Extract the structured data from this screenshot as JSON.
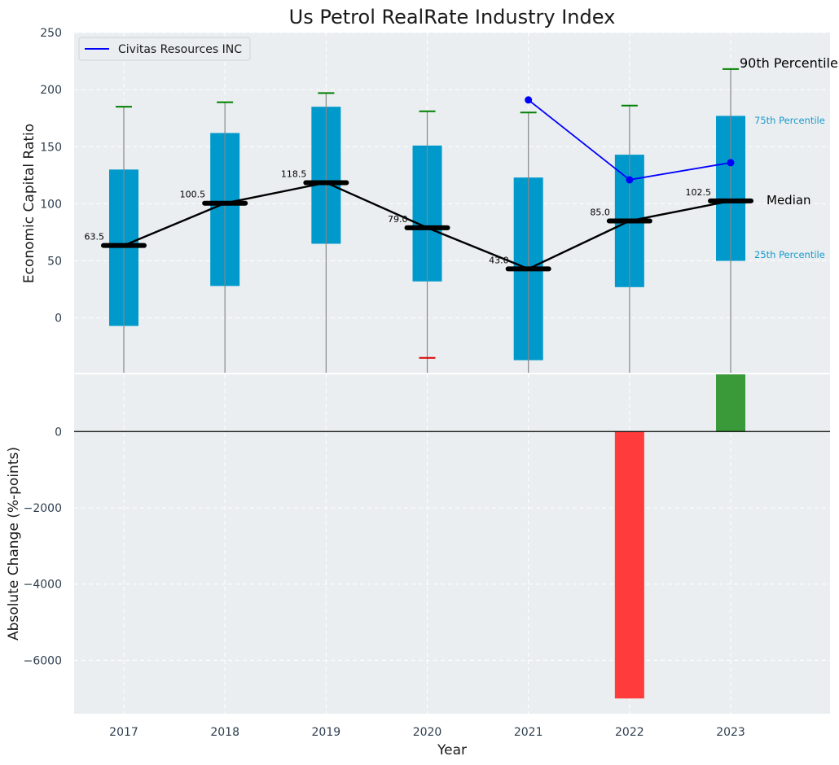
{
  "chart_data": [
    {
      "type": "box",
      "title": "Us Petrol RealRate Industry Index",
      "ylabel": "Economic Capital Ratio",
      "xlabel": "",
      "ylim": [
        -48,
        250
      ],
      "yticks": [
        0,
        50,
        100,
        150,
        200,
        250
      ],
      "categories": [
        "2017",
        "2018",
        "2019",
        "2020",
        "2021",
        "2022",
        "2023"
      ],
      "boxes": [
        {
          "year": "2017",
          "p10": null,
          "p25": -7,
          "median": 63.5,
          "p75": 130,
          "p90": 185
        },
        {
          "year": "2018",
          "p10": null,
          "p25": 28,
          "median": 100.5,
          "p75": 162,
          "p90": 189
        },
        {
          "year": "2019",
          "p10": null,
          "p25": 65,
          "median": 118.5,
          "p75": 185,
          "p90": 197
        },
        {
          "year": "2020",
          "p10": -35,
          "p25": 32,
          "median": 79.0,
          "p75": 151,
          "p90": 181
        },
        {
          "year": "2021",
          "p10": null,
          "p25": -37,
          "median": 43.0,
          "p75": 123,
          "p90": 180
        },
        {
          "year": "2022",
          "p10": null,
          "p25": 27,
          "median": 85.0,
          "p75": 143,
          "p90": 186
        },
        {
          "year": "2023",
          "p10": null,
          "p25": 50,
          "median": 102.5,
          "p75": 177,
          "p90": 218
        }
      ],
      "median_labels": [
        "63.5",
        "100.5",
        "118.5",
        "79.0",
        "43.0",
        "85.0",
        "102.5"
      ],
      "company_series": {
        "name": "Civitas Resources INC",
        "x": [
          "2021",
          "2022",
          "2023"
        ],
        "values": [
          191,
          121,
          136
        ]
      },
      "legend": {
        "position": "top-left",
        "entries": [
          "Civitas Resources INC"
        ]
      },
      "annotations": {
        "p90": "90th Percentile",
        "p75": "75th Percentile",
        "median": "Median",
        "p25": "25th Percentile"
      },
      "grid": true
    },
    {
      "type": "bar",
      "title": "",
      "xlabel": "Year",
      "ylabel": "Absolute Change (%-points)",
      "ylim": [
        -7400,
        1500
      ],
      "yticks": [
        0,
        -2000,
        -4000,
        -6000
      ],
      "ytick_labels": [
        "0",
        "−2000",
        "−4000",
        "−6000"
      ],
      "categories": [
        "2017",
        "2018",
        "2019",
        "2020",
        "2021",
        "2022",
        "2023"
      ],
      "values": [
        null,
        null,
        null,
        null,
        null,
        -7000,
        1500
      ],
      "grid": true
    }
  ],
  "colors": {
    "plot_bg": "#eaeef0",
    "box": "#0099cc",
    "whisker": "#888888",
    "cap_high": "#008000",
    "cap_low": "#dd0000",
    "median": "#000000",
    "company": "#0000ff",
    "bar_negative": "#ff3b3b",
    "bar_positive": "#3a9a3a",
    "annot_blue": "#1a9acc"
  }
}
